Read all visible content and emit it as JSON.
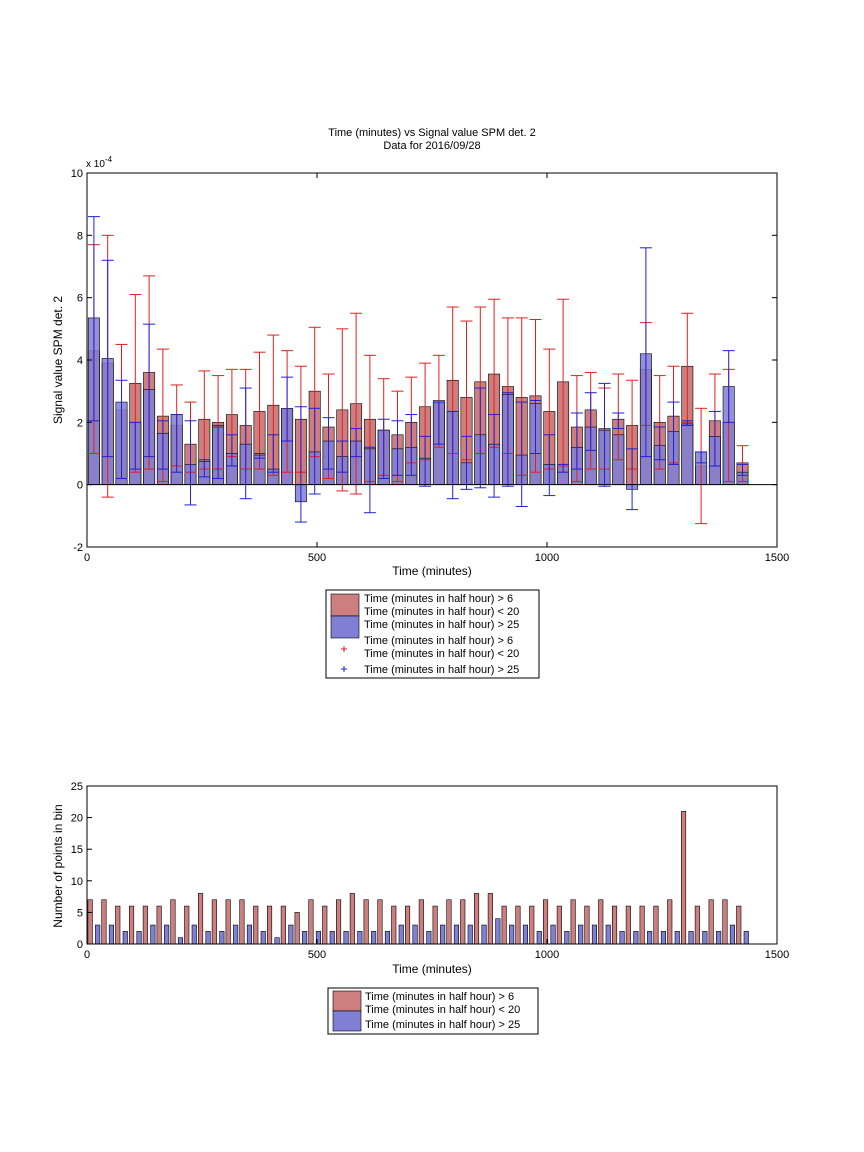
{
  "chart_data": [
    {
      "type": "bar",
      "title": "Time (minutes) vs Signal value SPM det. 2",
      "subtitle": "Data for 2016/09/28",
      "xlabel": "Time (minutes)",
      "ylabel": "Signal value SPM det. 2",
      "exponent_label": "x 10",
      "exponent_power": "-4",
      "xlim": [
        0,
        1500
      ],
      "ylim": [
        -2,
        10
      ],
      "xticks": [
        0,
        500,
        1000,
        1500
      ],
      "yticks": [
        -2,
        0,
        2,
        4,
        6,
        8,
        10
      ],
      "grid": false,
      "legend_placement": "below",
      "legend": [
        {
          "line1": "Time (minutes in half hour) > 6",
          "line2": "Time (minutes in half hour) < 20"
        },
        {
          "line1": "Time (minutes in half hour) > 25",
          "line2": ""
        },
        {
          "line1": "Time (minutes in half hour) > 6",
          "line2": "Time (minutes in half hour) < 20"
        },
        {
          "line1": "Time (minutes in half hour) > 25",
          "line2": ""
        }
      ],
      "colors": {
        "red_fill": "#cd7f7f",
        "blue_fill": "#7f7fd6",
        "red_err": "#e02020",
        "blue_err": "#2020d8"
      },
      "x": [
        15,
        45,
        75,
        105,
        135,
        165,
        195,
        225,
        255,
        285,
        315,
        345,
        375,
        405,
        435,
        465,
        495,
        525,
        555,
        585,
        615,
        645,
        675,
        705,
        735,
        765,
        795,
        825,
        855,
        885,
        915,
        945,
        975,
        1005,
        1035,
        1065,
        1095,
        1125,
        1155,
        1185,
        1215,
        1245,
        1275,
        1305,
        1335,
        1365,
        1395,
        1425
      ],
      "series": [
        {
          "name": "Time (minutes in half hour) > 6, Time (minutes in half hour) < 20",
          "values": [
            4.3,
            3.9,
            2.4,
            3.25,
            3.6,
            2.2,
            1.9,
            1.3,
            2.1,
            2.0,
            2.25,
            1.9,
            2.35,
            2.55,
            2.4,
            2.1,
            3.0,
            1.85,
            2.4,
            2.6,
            2.1,
            1.75,
            1.6,
            2.0,
            2.5,
            2.6,
            3.35,
            2.8,
            3.3,
            3.55,
            3.15,
            2.8,
            2.85,
            2.35,
            3.3,
            1.85,
            2.4,
            1.8,
            2.1,
            1.9,
            3.7,
            2.0,
            2.2,
            3.8,
            0.6,
            2.05,
            2.0,
            0.7
          ],
          "err_low": [
            1.0,
            -0.4,
            0.2,
            0.4,
            0.5,
            0.1,
            0.6,
            0.4,
            0.5,
            0.5,
            0.9,
            0.5,
            0.5,
            0.3,
            0.4,
            0.4,
            0.9,
            0.2,
            -0.2,
            -0.3,
            0.1,
            0.3,
            0.1,
            0.7,
            0.8,
            1.2,
            1.0,
            0.8,
            1.0,
            1.2,
            1.0,
            0.3,
            0.4,
            0.5,
            0.6,
            0.1,
            0.5,
            0.5,
            0.8,
            0.5,
            1.9,
            0.5,
            0.7,
            2.0,
            -1.25,
            0.6,
            0.1,
            0.1
          ],
          "err_high": [
            7.7,
            8.0,
            4.5,
            6.1,
            6.7,
            4.35,
            3.2,
            2.65,
            3.65,
            3.5,
            3.7,
            3.7,
            4.25,
            4.8,
            4.3,
            3.8,
            5.05,
            3.55,
            5.0,
            5.5,
            4.15,
            3.4,
            3.0,
            3.45,
            3.9,
            4.15,
            5.7,
            5.25,
            5.7,
            5.95,
            5.35,
            5.35,
            5.3,
            4.35,
            5.95,
            3.5,
            3.6,
            3.1,
            3.55,
            3.35,
            5.2,
            3.5,
            3.8,
            5.5,
            2.45,
            3.55,
            3.7,
            1.25
          ]
        },
        {
          "name": "Time (minutes in half hour) > 25",
          "values": [
            5.35,
            4.05,
            2.65,
            2.0,
            3.05,
            1.65,
            2.25,
            0.65,
            0.75,
            1.85,
            1.0,
            1.3,
            0.95,
            0.5,
            2.45,
            -0.55,
            1.05,
            1.4,
            0.9,
            1.4,
            1.15,
            1.75,
            1.15,
            1.2,
            0.85,
            2.7,
            2.35,
            0.7,
            1.6,
            1.3,
            2.9,
            0.95,
            2.6,
            0.65,
            0.6,
            1.2,
            1.85,
            1.75,
            1.6,
            -0.15,
            4.2,
            1.25,
            1.7,
            1.95,
            1.05,
            1.55,
            3.15,
            0.4
          ],
          "err_low": [
            2.05,
            0.9,
            0.2,
            0.5,
            0.9,
            0.5,
            0.4,
            -0.65,
            0.25,
            0.2,
            0.6,
            -0.45,
            0.85,
            0.4,
            1.4,
            -1.2,
            -0.3,
            0.5,
            0.4,
            0.9,
            -0.9,
            0.2,
            0.3,
            0.3,
            -0.05,
            1.3,
            -0.45,
            -0.15,
            -0.1,
            -0.4,
            -0.05,
            -0.7,
            1.0,
            -0.35,
            0.4,
            0.5,
            1.1,
            -0.05,
            1.8,
            -0.8,
            0.9,
            0.8,
            0.65,
            1.9,
            0.7,
            0.6,
            2.0,
            0.3
          ],
          "err_high": [
            8.6,
            7.2,
            3.35,
            2.0,
            5.15,
            2.05,
            2.25,
            2.05,
            0.8,
            1.9,
            1.6,
            3.1,
            1.0,
            1.6,
            3.45,
            2.5,
            2.45,
            2.15,
            1.4,
            1.8,
            1.2,
            2.1,
            2.05,
            2.25,
            1.55,
            2.65,
            2.35,
            1.55,
            3.1,
            2.25,
            2.95,
            2.65,
            2.7,
            1.6,
            0.65,
            2.3,
            2.95,
            3.25,
            2.3,
            1.15,
            7.6,
            1.85,
            2.65,
            2.05,
            1.05,
            2.35,
            4.3,
            0.65
          ]
        }
      ]
    },
    {
      "type": "bar",
      "xlabel": "Time (minutes)",
      "ylabel": "Number of points in bin",
      "xlim": [
        0,
        1500
      ],
      "ylim": [
        0,
        25
      ],
      "xticks": [
        0,
        500,
        1000,
        1500
      ],
      "yticks": [
        0,
        5,
        10,
        15,
        20,
        25
      ],
      "grid": false,
      "legend_placement": "below",
      "legend": [
        {
          "line1": "Time (minutes in half hour) > 6",
          "line2": "Time (minutes in half hour) < 20"
        },
        {
          "line1": "Time (minutes in half hour) > 25",
          "line2": ""
        }
      ],
      "x": [
        15,
        45,
        75,
        105,
        135,
        165,
        195,
        225,
        255,
        285,
        315,
        345,
        375,
        405,
        435,
        465,
        495,
        525,
        555,
        585,
        615,
        645,
        675,
        705,
        735,
        765,
        795,
        825,
        855,
        885,
        915,
        945,
        975,
        1005,
        1035,
        1065,
        1095,
        1125,
        1155,
        1185,
        1215,
        1245,
        1275,
        1305,
        1335,
        1365,
        1395,
        1425
      ],
      "series": [
        {
          "name": "Time (minutes in half hour) > 6, Time (minutes in half hour) < 20",
          "values": [
            7,
            7,
            6,
            6,
            6,
            6,
            7,
            6,
            8,
            7,
            7,
            7,
            6,
            6,
            6,
            5,
            7,
            6,
            7,
            8,
            7,
            7,
            6,
            6,
            7,
            6,
            7,
            7,
            8,
            8,
            6,
            6,
            6,
            7,
            6,
            7,
            6,
            7,
            6,
            6,
            6,
            6,
            7,
            21,
            6,
            7,
            7,
            6
          ]
        },
        {
          "name": "Time (minutes in half hour) > 25",
          "values": [
            3,
            3,
            2,
            2,
            3,
            3,
            1,
            3,
            2,
            2,
            3,
            3,
            2,
            1,
            3,
            2,
            2,
            2,
            2,
            2,
            2,
            2,
            3,
            3,
            2,
            3,
            3,
            3,
            3,
            4,
            3,
            3,
            2,
            3,
            2,
            3,
            3,
            3,
            2,
            2,
            2,
            2,
            2,
            2,
            2,
            2,
            3,
            2
          ]
        }
      ]
    }
  ]
}
